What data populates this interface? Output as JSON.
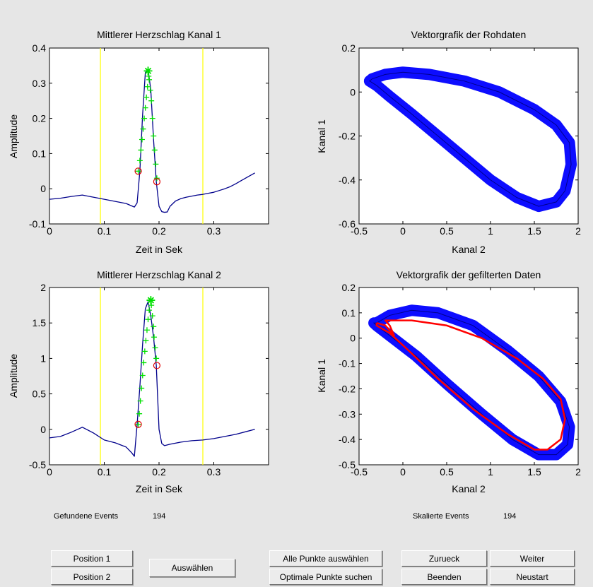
{
  "plots": [
    {
      "title": "Mittlerer Herzschlag Kanal 1",
      "xlabel": "Zeit in Sek",
      "ylabel": "Amplitude",
      "xticks": [
        "0",
        "0.1",
        "0.2",
        "0.3"
      ],
      "yticks": [
        "-0.1",
        "0",
        "0.1",
        "0.2",
        "0.3",
        "0.4"
      ]
    },
    {
      "title": "Vektorgrafik der Rohdaten",
      "xlabel": "Kanal 2",
      "ylabel": "Kanal 1",
      "xticks": [
        "-0.5",
        "0",
        "0.5",
        "1",
        "1.5",
        "2"
      ],
      "yticks": [
        "-0.6",
        "-0.4",
        "-0.2",
        "0",
        "0.2"
      ]
    },
    {
      "title": "Mittlerer Herzschlag Kanal 2",
      "xlabel": "Zeit in Sek",
      "ylabel": "Amplitude",
      "xticks": [
        "0",
        "0.1",
        "0.2",
        "0.3"
      ],
      "yticks": [
        "-0.5",
        "0",
        "0.5",
        "1",
        "1.5",
        "2"
      ]
    },
    {
      "title": "Vektorgrafik der gefilterten Daten",
      "xlabel": "Kanal 2",
      "ylabel": "Kanal 1",
      "xticks": [
        "-0.5",
        "0",
        "0.5",
        "1",
        "1.5",
        "2"
      ],
      "yticks": [
        "-0.5",
        "-0.4",
        "-0.3",
        "-0.2",
        "-0.1",
        "0",
        "0.1",
        "0.2"
      ]
    }
  ],
  "chart_data": [
    {
      "type": "line",
      "title": "Mittlerer Herzschlag Kanal 1",
      "xlabel": "Zeit in Sek",
      "ylabel": "Amplitude",
      "xlim": [
        0,
        0.4
      ],
      "ylim": [
        -0.1,
        0.4
      ],
      "series": [
        {
          "color": "#00008b",
          "x": [
            0,
            0.02,
            0.04,
            0.06,
            0.08,
            0.1,
            0.12,
            0.14,
            0.155,
            0.16,
            0.165,
            0.17,
            0.175,
            0.18,
            0.185,
            0.19,
            0.195,
            0.2,
            0.205,
            0.21,
            0.215,
            0.22,
            0.23,
            0.24,
            0.25,
            0.26,
            0.27,
            0.28,
            0.29,
            0.3,
            0.31,
            0.32,
            0.33,
            0.34,
            0.35,
            0.36,
            0.375
          ],
          "y": [
            -0.03,
            -0.027,
            -0.022,
            -0.018,
            -0.024,
            -0.03,
            -0.036,
            -0.042,
            -0.052,
            -0.04,
            0.05,
            0.21,
            0.33,
            0.34,
            0.28,
            0.14,
            0.02,
            -0.05,
            -0.065,
            -0.067,
            -0.066,
            -0.05,
            -0.035,
            -0.028,
            -0.024,
            -0.021,
            -0.018,
            -0.016,
            -0.013,
            -0.01,
            -0.005,
            0.0,
            0.006,
            0.014,
            0.023,
            0.032,
            0.045
          ]
        }
      ],
      "vertical_lines": [
        0.093,
        0.28
      ],
      "vertical_line_color": "#ffff00",
      "green_markers_left": {
        "x": [
          0.162,
          0.165,
          0.167,
          0.169,
          0.171,
          0.173,
          0.175,
          0.177,
          0.179,
          0.181
        ],
        "y": [
          0.05,
          0.08,
          0.11,
          0.14,
          0.17,
          0.2,
          0.23,
          0.26,
          0.29,
          0.32
        ]
      },
      "green_markers_right": {
        "x": [
          0.182,
          0.184,
          0.186,
          0.188,
          0.19,
          0.192,
          0.194,
          0.196
        ],
        "y": [
          0.31,
          0.28,
          0.25,
          0.2,
          0.15,
          0.11,
          0.07,
          0.03
        ]
      },
      "peak_marker": {
        "x": 0.18,
        "y": 0.335
      },
      "red_circles": {
        "x": [
          0.162,
          0.196
        ],
        "y": [
          0.05,
          0.02
        ]
      }
    },
    {
      "type": "line",
      "title": "Vektorgrafik der Rohdaten",
      "xlabel": "Kanal 2",
      "ylabel": "Kanal 1",
      "xlim": [
        -0.5,
        2
      ],
      "ylim": [
        -0.6,
        0.2
      ],
      "series": [
        {
          "color": "#0000ff",
          "x": [
            -0.35,
            -0.2,
            0.0,
            0.3,
            0.7,
            1.1,
            1.5,
            1.75,
            1.9,
            1.92,
            1.85,
            1.75,
            1.55,
            1.3,
            1.0,
            0.7,
            0.4,
            0.1,
            -0.15,
            -0.3,
            -0.38,
            -0.35
          ],
          "y": [
            0.06,
            0.08,
            0.09,
            0.08,
            0.05,
            0.0,
            -0.08,
            -0.15,
            -0.23,
            -0.33,
            -0.45,
            -0.5,
            -0.52,
            -0.48,
            -0.4,
            -0.3,
            -0.2,
            -0.1,
            -0.02,
            0.03,
            0.05,
            0.06
          ]
        }
      ]
    },
    {
      "type": "line",
      "title": "Mittlerer Herzschlag Kanal 2",
      "xlabel": "Zeit in Sek",
      "ylabel": "Amplitude",
      "xlim": [
        0,
        0.4
      ],
      "ylim": [
        -0.5,
        2
      ],
      "series": [
        {
          "color": "#00008b",
          "x": [
            0,
            0.02,
            0.04,
            0.06,
            0.08,
            0.1,
            0.12,
            0.14,
            0.15,
            0.155,
            0.16,
            0.165,
            0.17,
            0.175,
            0.18,
            0.185,
            0.19,
            0.195,
            0.2,
            0.205,
            0.21,
            0.22,
            0.24,
            0.26,
            0.28,
            0.3,
            0.32,
            0.34,
            0.36,
            0.375
          ],
          "y": [
            -0.12,
            -0.1,
            -0.04,
            0.03,
            -0.05,
            -0.15,
            -0.19,
            -0.25,
            -0.33,
            -0.38,
            0.07,
            0.6,
            1.2,
            1.7,
            1.8,
            1.6,
            1.3,
            0.9,
            0.0,
            -0.2,
            -0.23,
            -0.21,
            -0.18,
            -0.16,
            -0.15,
            -0.13,
            -0.1,
            -0.07,
            -0.03,
            0.0
          ]
        }
      ],
      "vertical_lines": [
        0.093,
        0.28
      ],
      "vertical_line_color": "#ffff00",
      "green_markers_left": {
        "x": [
          0.162,
          0.164,
          0.166,
          0.168,
          0.17,
          0.172,
          0.174,
          0.176,
          0.178,
          0.18,
          0.182
        ],
        "y": [
          0.07,
          0.22,
          0.4,
          0.58,
          0.76,
          0.94,
          1.1,
          1.25,
          1.4,
          1.55,
          1.68
        ]
      },
      "green_markers_right": {
        "x": [
          0.186,
          0.188,
          0.19,
          0.191,
          0.193,
          0.195
        ],
        "y": [
          1.75,
          1.6,
          1.45,
          1.3,
          1.15,
          1.0
        ]
      },
      "peak_marker": {
        "x": 0.185,
        "y": 1.82
      },
      "red_circles": {
        "x": [
          0.162,
          0.196
        ],
        "y": [
          0.07,
          0.9
        ]
      }
    },
    {
      "type": "line",
      "title": "Vektorgrafik der gefilterten Daten",
      "xlabel": "Kanal 2",
      "ylabel": "Kanal 1",
      "xlim": [
        -0.5,
        2
      ],
      "ylim": [
        -0.5,
        0.2
      ],
      "series": [
        {
          "color": "#0000ff",
          "x": [
            -0.3,
            -0.15,
            0.1,
            0.4,
            0.8,
            1.2,
            1.55,
            1.8,
            1.9,
            1.88,
            1.75,
            1.55,
            1.25,
            0.9,
            0.5,
            0.15,
            -0.15,
            -0.3,
            -0.33,
            -0.3
          ],
          "y": [
            0.06,
            0.09,
            0.11,
            0.1,
            0.05,
            -0.05,
            -0.15,
            -0.25,
            -0.35,
            -0.42,
            -0.46,
            -0.46,
            -0.4,
            -0.3,
            -0.18,
            -0.07,
            0.01,
            0.05,
            0.06,
            0.06
          ]
        },
        {
          "color": "#ff0000",
          "x": [
            -0.3,
            -0.2,
            -0.1,
            -0.15,
            -0.2,
            -0.1,
            0.1,
            0.5,
            0.9,
            1.3,
            1.6,
            1.8,
            1.85,
            1.8,
            1.65,
            1.5,
            1.2,
            0.8,
            0.4,
            0.1,
            -0.15,
            -0.3,
            -0.3
          ],
          "y": [
            0.06,
            0.05,
            0.01,
            0.05,
            0.07,
            0.07,
            0.07,
            0.05,
            0.0,
            -0.08,
            -0.16,
            -0.24,
            -0.32,
            -0.4,
            -0.44,
            -0.44,
            -0.38,
            -0.28,
            -0.16,
            -0.06,
            0.02,
            0.05,
            0.06
          ]
        }
      ]
    }
  ],
  "status": {
    "events_label": "Gefundene Events",
    "events_value": "194",
    "scaled_label": "Skalierte Events",
    "scaled_value": "194"
  },
  "buttons": {
    "position1": "Position 1",
    "position2": "Position 2",
    "auswaehlen": "Auswählen",
    "alle_punkte": "Alle Punkte auswählen",
    "optimale_punkte": "Optimale Punkte suchen",
    "zurueck": "Zurueck",
    "weiter": "Weiter",
    "beenden": "Beenden",
    "neustart": "Neustart"
  }
}
